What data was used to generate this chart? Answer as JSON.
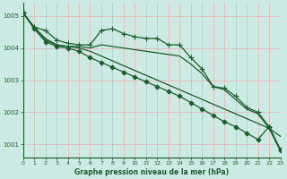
{
  "title": "Graphe pression niveau de la mer (hPa)",
  "background_color": "#cceae4",
  "grid_color": "#e8b0b0",
  "line_color": "#1a5c2a",
  "xlim": [
    0,
    23
  ],
  "ylim": [
    1000.6,
    1005.4
  ],
  "yticks": [
    1001,
    1002,
    1003,
    1004,
    1005
  ],
  "xticks": [
    0,
    1,
    2,
    3,
    4,
    5,
    6,
    7,
    8,
    9,
    10,
    11,
    12,
    13,
    14,
    15,
    16,
    17,
    18,
    19,
    20,
    21,
    22,
    23
  ],
  "series": [
    {
      "x": [
        0,
        1,
        2,
        3,
        4,
        5,
        6,
        7,
        8,
        9,
        10,
        11,
        12,
        13,
        14,
        15,
        16,
        17,
        18,
        19,
        20,
        21,
        22,
        23
      ],
      "y": [
        1005.1,
        1004.65,
        1004.55,
        1004.25,
        1004.15,
        1004.1,
        1004.1,
        1004.55,
        1004.6,
        1004.45,
        1004.35,
        1004.3,
        1004.3,
        1004.1,
        1004.1,
        1003.7,
        1003.35,
        1002.8,
        1002.75,
        1002.5,
        1002.15,
        1002.0,
        1001.55,
        1000.85
      ],
      "marker": "+",
      "markersize": 4,
      "linewidth": 0.9
    },
    {
      "x": [
        0,
        1,
        2,
        3,
        4,
        5,
        6,
        7,
        8,
        9,
        10,
        11,
        12,
        13,
        14,
        15,
        16,
        17,
        18,
        19,
        20,
        21,
        22,
        23
      ],
      "y": [
        1005.1,
        1004.65,
        1004.3,
        1004.1,
        1004.05,
        1004.05,
        1004.0,
        1004.1,
        1004.05,
        1004.0,
        1003.95,
        1003.9,
        1003.85,
        1003.8,
        1003.75,
        1003.5,
        1003.2,
        1002.8,
        1002.7,
        1002.4,
        1002.1,
        1001.95,
        1001.5,
        1000.8
      ],
      "marker": null,
      "markersize": 0,
      "linewidth": 0.9
    },
    {
      "x": [
        0,
        1,
        2,
        3,
        4,
        5,
        6,
        7,
        8,
        9,
        10,
        11,
        12,
        13,
        14,
        15,
        16,
        17,
        18,
        19,
        20,
        21,
        22,
        23
      ],
      "y": [
        1005.1,
        1004.65,
        1004.25,
        1004.1,
        1004.05,
        1004.0,
        1003.9,
        1003.75,
        1003.6,
        1003.45,
        1003.3,
        1003.15,
        1003.0,
        1002.85,
        1002.7,
        1002.55,
        1002.4,
        1002.25,
        1002.1,
        1001.95,
        1001.8,
        1001.65,
        1001.5,
        1001.25
      ],
      "marker": null,
      "markersize": 0,
      "linewidth": 0.9
    },
    {
      "x": [
        0,
        1,
        2,
        3,
        4,
        5,
        6,
        7,
        8,
        9,
        10,
        11,
        12,
        13,
        14,
        15,
        16,
        17,
        18,
        19,
        20,
        21,
        22,
        23
      ],
      "y": [
        1005.1,
        1004.6,
        1004.2,
        1004.05,
        1004.0,
        1003.9,
        1003.7,
        1003.55,
        1003.4,
        1003.25,
        1003.1,
        1002.95,
        1002.8,
        1002.65,
        1002.5,
        1002.3,
        1002.1,
        1001.9,
        1001.7,
        1001.55,
        1001.35,
        1001.15,
        1001.55,
        1000.82
      ],
      "marker": "D",
      "markersize": 2.5,
      "linewidth": 0.9
    }
  ]
}
